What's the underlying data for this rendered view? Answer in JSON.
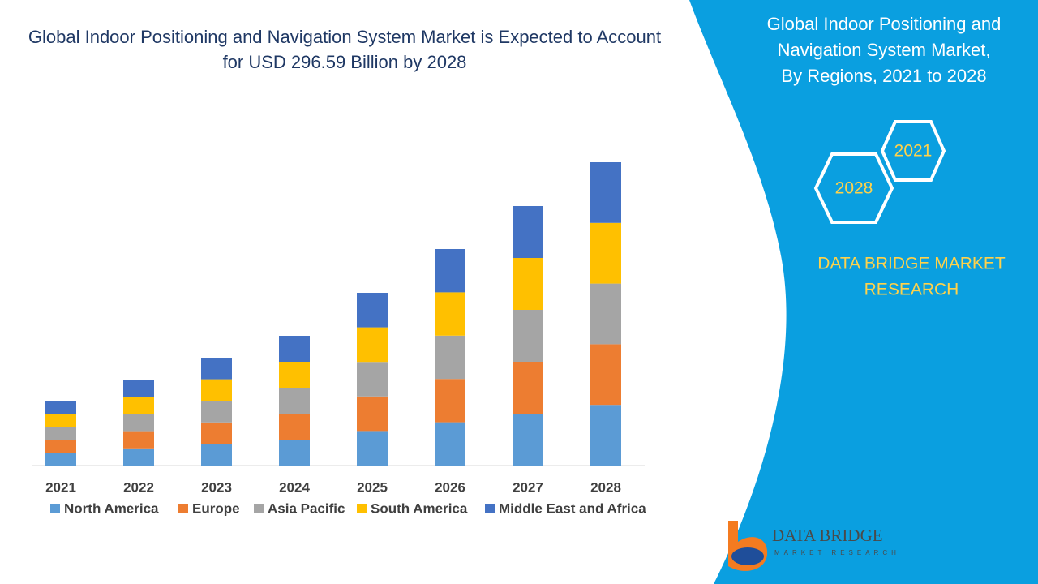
{
  "chart_data": {
    "type": "bar",
    "stacked": true,
    "title": "Global Indoor Positioning and Navigation System Market is Expected to Account for USD 296.59 Billion by 2028",
    "categories": [
      "2021",
      "2022",
      "2023",
      "2024",
      "2025",
      "2026",
      "2027",
      "2028"
    ],
    "series": [
      {
        "name": "North America",
        "color": "#5b9bd5",
        "values": [
          16,
          21.2,
          26.6,
          32,
          42.6,
          53.4,
          64,
          74.8
        ]
      },
      {
        "name": "Europe",
        "color": "#ed7d31",
        "values": [
          16,
          21.2,
          26.6,
          32,
          42.6,
          53.4,
          64,
          74.8
        ]
      },
      {
        "name": "Asia Pacific",
        "color": "#a5a5a5",
        "values": [
          16,
          21.2,
          26.6,
          32,
          42.6,
          53.4,
          64,
          74.8
        ]
      },
      {
        "name": "South America",
        "color": "#ffc000",
        "values": [
          16,
          21.2,
          26.6,
          32,
          42.6,
          53.4,
          64,
          74.8
        ]
      },
      {
        "name": "Middle East and Africa",
        "color": "#4472c4",
        "values": [
          16,
          21.2,
          26.6,
          32,
          42.6,
          53.4,
          64,
          74.8
        ]
      }
    ],
    "legend": "bottom"
  },
  "side_panel": {
    "title": [
      "Global Indoor Positioning and",
      "Navigation System Market,",
      "By Regions, 2021 to 2028"
    ],
    "hexagons": [
      "2021",
      "2028"
    ],
    "brand": [
      "DATA BRIDGE MARKET",
      "RESEARCH"
    ]
  },
  "logo": {
    "name": "DATA BRIDGE",
    "tagline": "MARKET RESEARCH"
  }
}
